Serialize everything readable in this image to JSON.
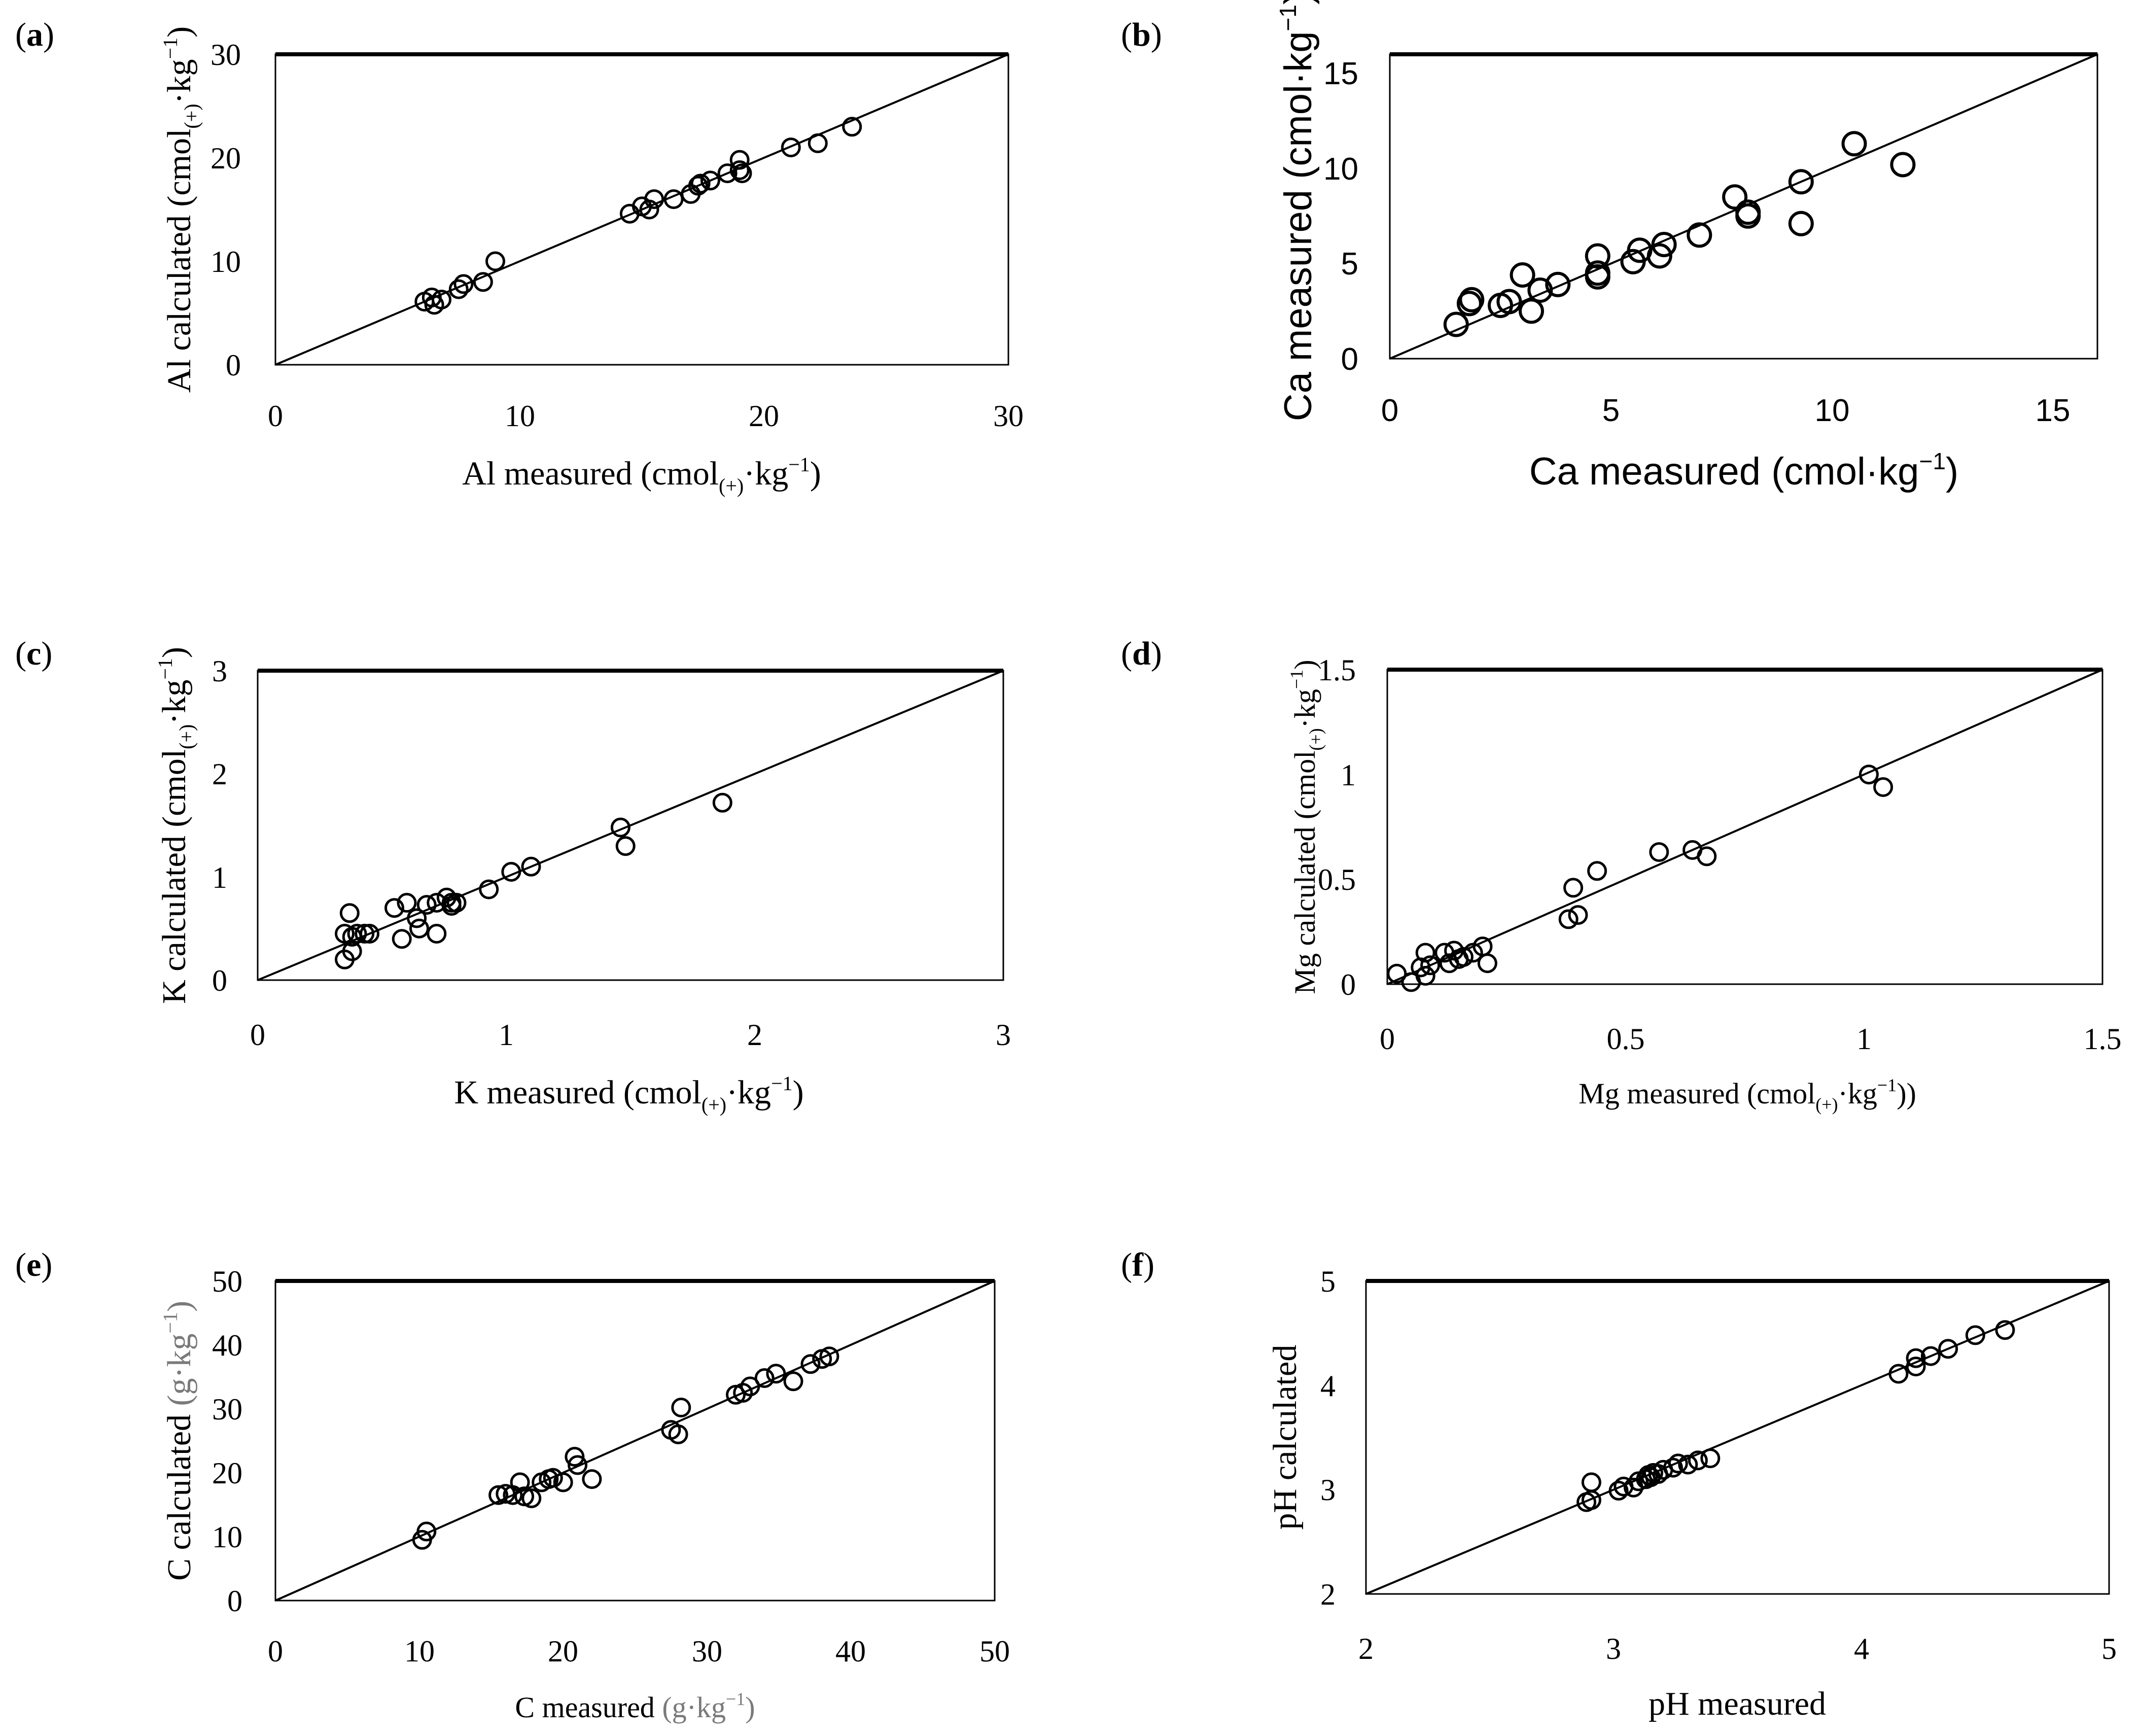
{
  "chart_data": [
    {
      "id": "a",
      "panel_label": "a",
      "type": "scatter",
      "xlabel": "Al measured (cmol(+)·kg−1)",
      "ylabel": "Al calculated (cmol(+)·kg−1)",
      "xlim": [
        0,
        30
      ],
      "ylim": [
        0,
        30
      ],
      "xticks": [
        "0",
        "10",
        "20",
        "30"
      ],
      "yticks": [
        "0",
        "10",
        "20",
        "30"
      ],
      "reference_line": "1:1",
      "points": [
        [
          6.1,
          6.1
        ],
        [
          6.4,
          6.5
        ],
        [
          6.5,
          5.8
        ],
        [
          6.8,
          6.3
        ],
        [
          7.5,
          7.3
        ],
        [
          7.7,
          7.8
        ],
        [
          8.5,
          8
        ],
        [
          9,
          10
        ],
        [
          14.5,
          14.6
        ],
        [
          15,
          15.3
        ],
        [
          15.3,
          15
        ],
        [
          15.5,
          16
        ],
        [
          16.3,
          16
        ],
        [
          17,
          16.5
        ],
        [
          17.3,
          17.3
        ],
        [
          17.4,
          17.5
        ],
        [
          17.8,
          17.8
        ],
        [
          18.5,
          18.5
        ],
        [
          19,
          19.8
        ],
        [
          19,
          18.8
        ],
        [
          19.1,
          18.5
        ],
        [
          21.1,
          21
        ],
        [
          22.2,
          21.4
        ],
        [
          23.6,
          23
        ]
      ]
    },
    {
      "id": "b",
      "panel_label": "b",
      "type": "scatter",
      "xlabel": "Ca measured (cmol·kg−1)",
      "ylabel": "Ca measured (cmol·kg−1)",
      "xlim": [
        0,
        16
      ],
      "ylim": [
        0,
        16
      ],
      "xticks": [
        "0",
        "5",
        "10",
        "15"
      ],
      "yticks": [
        "0",
        "5",
        "10",
        "15"
      ],
      "reference_line": "1:1",
      "points": [
        [
          1.5,
          1.8
        ],
        [
          1.8,
          2.9
        ],
        [
          1.85,
          3.1
        ],
        [
          2.5,
          2.8
        ],
        [
          2.7,
          3
        ],
        [
          3,
          4.4
        ],
        [
          3.2,
          2.5
        ],
        [
          3.4,
          3.6
        ],
        [
          3.8,
          3.9
        ],
        [
          4.7,
          5.4
        ],
        [
          4.7,
          4.5
        ],
        [
          4.7,
          4.3
        ],
        [
          5.5,
          5.1
        ],
        [
          5.65,
          5.7
        ],
        [
          6.1,
          5.4
        ],
        [
          6.2,
          6
        ],
        [
          7,
          6.5
        ],
        [
          7.8,
          8.5
        ],
        [
          8.1,
          7.7
        ],
        [
          8.1,
          7.5
        ],
        [
          9.3,
          9.3
        ],
        [
          9.3,
          7.1
        ],
        [
          10.5,
          11.3
        ],
        [
          11.6,
          10.2
        ]
      ]
    },
    {
      "id": "c",
      "panel_label": "c",
      "type": "scatter",
      "xlabel": "K measured (cmol(+)·kg−1)",
      "ylabel": "K calculated (cmol(+)·kg−1)",
      "xlim": [
        0,
        3
      ],
      "ylim": [
        0,
        3
      ],
      "xticks": [
        "0",
        "1",
        "2",
        "3"
      ],
      "yticks": [
        "0",
        "1",
        "2",
        "3"
      ],
      "reference_line": "1:1",
      "points": [
        [
          0.35,
          0.2
        ],
        [
          0.35,
          0.45
        ],
        [
          0.37,
          0.65
        ],
        [
          0.38,
          0.42
        ],
        [
          0.4,
          0.45
        ],
        [
          0.38,
          0.28
        ],
        [
          0.43,
          0.45
        ],
        [
          0.45,
          0.45
        ],
        [
          0.55,
          0.7
        ],
        [
          0.58,
          0.4
        ],
        [
          0.6,
          0.75
        ],
        [
          0.64,
          0.6
        ],
        [
          0.65,
          0.5
        ],
        [
          0.68,
          0.73
        ],
        [
          0.72,
          0.45
        ],
        [
          0.72,
          0.75
        ],
        [
          0.76,
          0.8
        ],
        [
          0.78,
          0.75
        ],
        [
          0.78,
          0.72
        ],
        [
          0.8,
          0.75
        ],
        [
          0.93,
          0.88
        ],
        [
          1.02,
          1.05
        ],
        [
          1.1,
          1.1
        ],
        [
          1.46,
          1.48
        ],
        [
          1.48,
          1.3
        ],
        [
          1.87,
          1.72
        ]
      ]
    },
    {
      "id": "d",
      "panel_label": "d",
      "type": "scatter",
      "xlabel": "Mg measured (cmol(+)·kg−1))",
      "ylabel": "Mg calculated (cmol(+)·kg−1)",
      "xlim": [
        0,
        1.5
      ],
      "ylim": [
        0,
        1.5
      ],
      "xticks": [
        "0",
        "0.5",
        "1",
        "1.5"
      ],
      "yticks": [
        "0",
        "0.5",
        "1",
        "1.5"
      ],
      "reference_line": "1:1",
      "points": [
        [
          0.02,
          0.05
        ],
        [
          0.05,
          0.01
        ],
        [
          0.07,
          0.08
        ],
        [
          0.08,
          0.04
        ],
        [
          0.08,
          0.15
        ],
        [
          0.09,
          0.09
        ],
        [
          0.12,
          0.15
        ],
        [
          0.13,
          0.1
        ],
        [
          0.14,
          0.16
        ],
        [
          0.15,
          0.12
        ],
        [
          0.16,
          0.13
        ],
        [
          0.18,
          0.15
        ],
        [
          0.2,
          0.18
        ],
        [
          0.21,
          0.1
        ],
        [
          0.38,
          0.31
        ],
        [
          0.39,
          0.46
        ],
        [
          0.4,
          0.33
        ],
        [
          0.44,
          0.54
        ],
        [
          0.57,
          0.63
        ],
        [
          0.64,
          0.64
        ],
        [
          0.67,
          0.61
        ],
        [
          1.01,
          1.0
        ],
        [
          1.04,
          0.94
        ]
      ]
    },
    {
      "id": "e",
      "panel_label": "e",
      "type": "scatter",
      "xlabel": "C measured (g·kg−1)",
      "ylabel": "C calculated (g·kg−1)",
      "xlim": [
        0,
        50
      ],
      "ylim": [
        0,
        50
      ],
      "xticks": [
        "0",
        "10",
        "20",
        "30",
        "40",
        "50"
      ],
      "yticks": [
        "0",
        "10",
        "20",
        "30",
        "40",
        "50"
      ],
      "reference_line": "1:1",
      "points": [
        [
          10.2,
          9.5
        ],
        [
          10.5,
          10.8
        ],
        [
          15.5,
          16.5
        ],
        [
          16,
          16.7
        ],
        [
          16.5,
          16.5
        ],
        [
          17,
          18.5
        ],
        [
          17.3,
          16.3
        ],
        [
          17.8,
          16
        ],
        [
          18.5,
          18.5
        ],
        [
          19,
          19
        ],
        [
          19.3,
          19.2
        ],
        [
          20,
          18.5
        ],
        [
          20.8,
          22.5
        ],
        [
          21,
          21.2
        ],
        [
          22,
          19
        ],
        [
          27.5,
          26.7
        ],
        [
          28,
          26
        ],
        [
          28.2,
          30.2
        ],
        [
          32,
          32.2
        ],
        [
          32.5,
          32.5
        ],
        [
          33,
          33.5
        ],
        [
          34,
          34.8
        ],
        [
          34.8,
          35.5
        ],
        [
          36,
          34.3
        ],
        [
          37.2,
          37
        ],
        [
          38,
          37.8
        ],
        [
          38.5,
          38.2
        ]
      ]
    },
    {
      "id": "f",
      "panel_label": "f",
      "type": "scatter",
      "xlabel": "pH measured",
      "ylabel": "pH calculated",
      "xlim": [
        2,
        5
      ],
      "ylim": [
        2,
        5
      ],
      "xticks": [
        "2",
        "3",
        "4",
        "5"
      ],
      "yticks": [
        "2",
        "3",
        "4",
        "5"
      ],
      "reference_line": "1:1",
      "points": [
        [
          2.89,
          2.88
        ],
        [
          2.91,
          2.9
        ],
        [
          2.91,
          3.07
        ],
        [
          3.02,
          2.99
        ],
        [
          3.04,
          3.03
        ],
        [
          3.08,
          3.02
        ],
        [
          3.1,
          3.08
        ],
        [
          3.13,
          3.1
        ],
        [
          3.14,
          3.14
        ],
        [
          3.15,
          3.12
        ],
        [
          3.16,
          3.16
        ],
        [
          3.18,
          3.15
        ],
        [
          3.2,
          3.19
        ],
        [
          3.24,
          3.21
        ],
        [
          3.26,
          3.25
        ],
        [
          3.3,
          3.24
        ],
        [
          3.34,
          3.28
        ],
        [
          3.39,
          3.3
        ],
        [
          4.15,
          4.11
        ],
        [
          4.22,
          4.18
        ],
        [
          4.22,
          4.26
        ],
        [
          4.28,
          4.28
        ],
        [
          4.35,
          4.35
        ],
        [
          4.46,
          4.48
        ],
        [
          4.58,
          4.53
        ]
      ]
    }
  ]
}
